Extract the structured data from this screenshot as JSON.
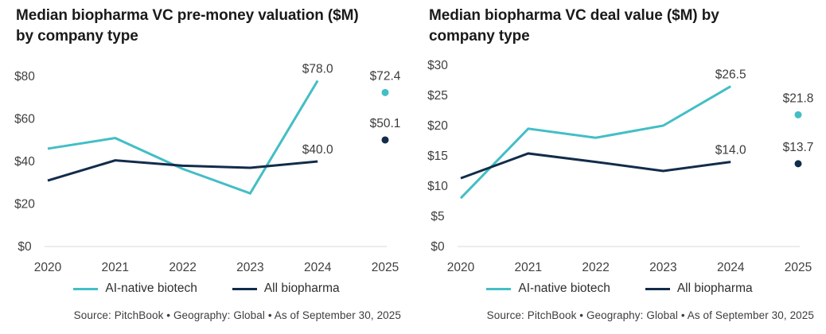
{
  "colors": {
    "ai_native_teal": "#43BEC5",
    "all_biopharma_navy": "#122C4A",
    "axis_baseline": "#d8d8d8",
    "tick_text": "#3f3f3f",
    "title_text": "#1a1a1a",
    "source_text": "#3d3d3d"
  },
  "chart_data": [
    {
      "type": "line",
      "title": "Median biopharma VC pre-money valuation ($M) by company type",
      "title_lines": [
        "Median biopharma VC pre-money valuation ($M)",
        "by company type"
      ],
      "x": [
        2020,
        2021,
        2022,
        2023,
        2024,
        2025
      ],
      "xticklabels": [
        "2020",
        "2021",
        "2022",
        "2023",
        "2024",
        "2025"
      ],
      "xlabel": "",
      "ylabel": "",
      "ylim": [
        0,
        80
      ],
      "grid": "baseline-only",
      "legend_position": "bottom",
      "yticks": [
        {
          "value": 80,
          "label": "$80"
        },
        {
          "value": 60,
          "label": "$60"
        },
        {
          "value": 40,
          "label": "$40"
        },
        {
          "value": 20,
          "label": "$20"
        },
        {
          "value": 0,
          "label": "$0"
        }
      ],
      "series": [
        {
          "name": "AI-native biotech",
          "color": "#43BEC5",
          "values": [
            46,
            51,
            36.5,
            25,
            78.0,
            72.4
          ],
          "line_through_index": 4,
          "labels": {
            "2024": "$78.0",
            "2025": "$72.4"
          }
        },
        {
          "name": "All biopharma",
          "color": "#122C4A",
          "values": [
            31,
            40.5,
            38,
            37,
            40.0,
            50.1
          ],
          "line_through_index": 4,
          "labels": {
            "2024": "$40.0",
            "2025": "$50.1"
          }
        }
      ],
      "source": "Source: PitchBook • Geography: Global • As of September 30, 2025"
    },
    {
      "type": "line",
      "title": "Median biopharma VC deal value ($M) by company type",
      "title_lines": [
        "Median biopharma VC deal value ($M) by",
        "company type"
      ],
      "x": [
        2020,
        2021,
        2022,
        2023,
        2024,
        2025
      ],
      "xticklabels": [
        "2020",
        "2021",
        "2022",
        "2023",
        "2024",
        "2025"
      ],
      "xlabel": "",
      "ylabel": "",
      "ylim": [
        0,
        30
      ],
      "grid": "baseline-only",
      "legend_position": "bottom",
      "yticks": [
        {
          "value": 30,
          "label": "$30"
        },
        {
          "value": 25,
          "label": "$25"
        },
        {
          "value": 20,
          "label": "$20"
        },
        {
          "value": 15,
          "label": "$15"
        },
        {
          "value": 10,
          "label": "$10"
        },
        {
          "value": 5,
          "label": "$5"
        },
        {
          "value": 0,
          "label": "$0"
        }
      ],
      "series": [
        {
          "name": "AI-native biotech",
          "color": "#43BEC5",
          "values": [
            8,
            19.5,
            18,
            20,
            26.5,
            21.8
          ],
          "line_through_index": 4,
          "labels": {
            "2024": "$26.5",
            "2025": "$21.8"
          }
        },
        {
          "name": "All biopharma",
          "color": "#122C4A",
          "values": [
            11.3,
            15.4,
            14,
            12.5,
            14.0,
            13.7
          ],
          "line_through_index": 4,
          "labels": {
            "2024": "$14.0",
            "2025": "$13.7"
          }
        }
      ],
      "source": "Source: PitchBook • Geography: Global • As of September 30, 2025"
    }
  ]
}
